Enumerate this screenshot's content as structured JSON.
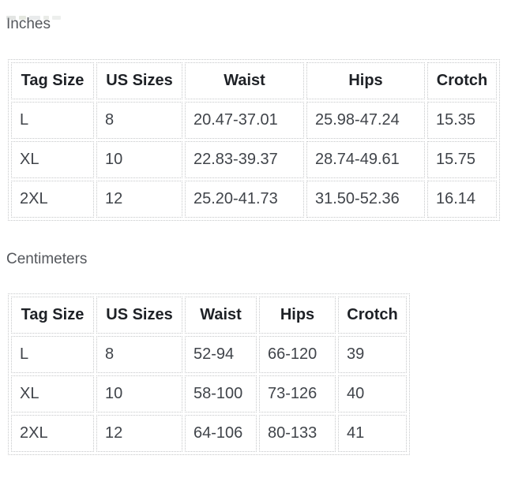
{
  "page": {
    "background": "#ffffff"
  },
  "colors": {
    "section_label": "#54575c",
    "header_text": "#1e2126",
    "cell_text": "#40444a",
    "table_border": "#c6c8ca"
  },
  "sections": [
    {
      "label": "Inches",
      "table": {
        "headers": [
          "Tag Size",
          "US Sizes",
          "Waist",
          "Hips",
          "Crotch"
        ],
        "rows": [
          [
            "L",
            "8",
            "20.47-37.01",
            "25.98-47.24",
            "15.35"
          ],
          [
            "XL",
            "10",
            "22.83-39.37",
            "28.74-49.61",
            "15.75"
          ],
          [
            "2XL",
            "12",
            "25.20-41.73",
            "31.50-52.36",
            "16.14"
          ]
        ]
      }
    },
    {
      "label": "Centimeters",
      "table": {
        "headers": [
          "Tag Size",
          "US Sizes",
          "Waist",
          "Hips",
          "Crotch"
        ],
        "rows": [
          [
            "L",
            "8",
            "52-94",
            "66-120",
            "39"
          ],
          [
            "XL",
            "10",
            "58-100",
            "73-126",
            "40"
          ],
          [
            "2XL",
            "12",
            "64-106",
            "80-133",
            "41"
          ]
        ]
      }
    }
  ]
}
